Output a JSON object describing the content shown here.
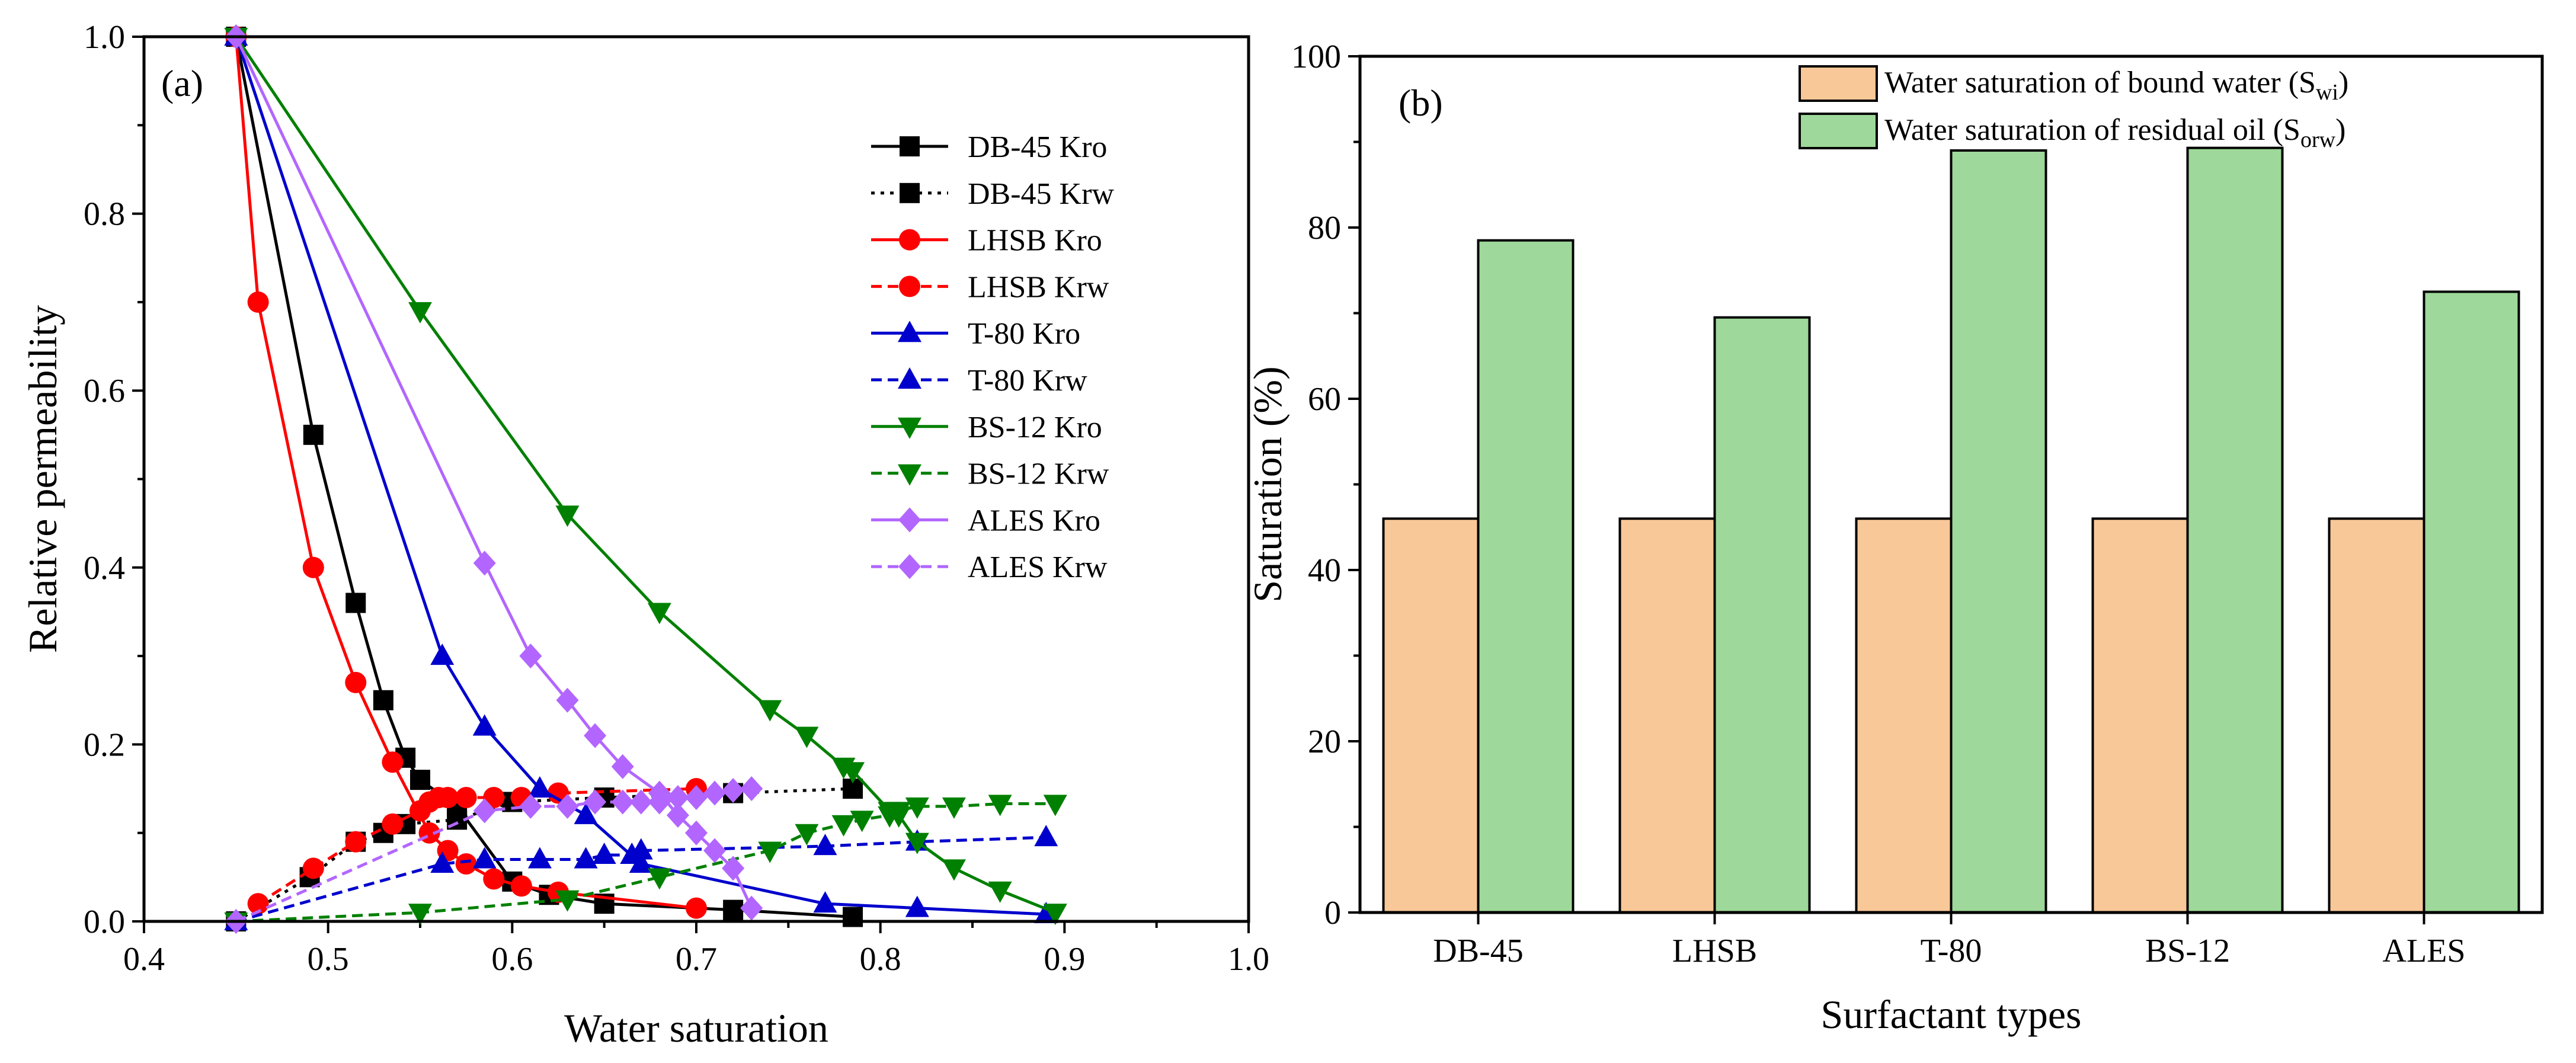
{
  "chart_data": [
    {
      "type": "line",
      "panel_label": "(a)",
      "xlabel": "Water saturation",
      "ylabel": "Relative permeability",
      "xlim": [
        0.4,
        1.0
      ],
      "ylim": [
        0.0,
        1.0
      ],
      "xticks": [
        "0.4",
        "0.5",
        "0.6",
        "0.7",
        "0.8",
        "0.9",
        "1.0"
      ],
      "yticks": [
        "0.0",
        "0.2",
        "0.4",
        "0.6",
        "0.8",
        "1.0"
      ],
      "legend_position": "top-right",
      "series": [
        {
          "name": "DB-45 Kro",
          "color": "#000000",
          "dash": "solid",
          "marker": "square",
          "x": [
            0.45,
            0.492,
            0.515,
            0.53,
            0.542,
            0.55,
            0.57,
            0.6,
            0.62,
            0.65,
            0.72,
            0.785
          ],
          "y": [
            1.0,
            0.55,
            0.36,
            0.25,
            0.185,
            0.16,
            0.13,
            0.045,
            0.03,
            0.02,
            0.013,
            0.005
          ]
        },
        {
          "name": "DB-45 Krw",
          "color": "#000000",
          "dash": "dotted",
          "marker": "square",
          "x": [
            0.45,
            0.49,
            0.515,
            0.53,
            0.542,
            0.57,
            0.6,
            0.65,
            0.72,
            0.785
          ],
          "y": [
            0.0,
            0.05,
            0.09,
            0.1,
            0.11,
            0.115,
            0.135,
            0.14,
            0.145,
            0.15
          ]
        },
        {
          "name": "LHSB Kro",
          "color": "#ff0000",
          "dash": "solid",
          "marker": "circle",
          "x": [
            0.45,
            0.462,
            0.492,
            0.515,
            0.535,
            0.555,
            0.565,
            0.575,
            0.59,
            0.605,
            0.625,
            0.7
          ],
          "y": [
            1.0,
            0.7,
            0.4,
            0.27,
            0.18,
            0.1,
            0.08,
            0.065,
            0.048,
            0.04,
            0.033,
            0.015
          ]
        },
        {
          "name": "LHSB Krw",
          "color": "#ff0000",
          "dash": "dashed",
          "marker": "circle",
          "x": [
            0.462,
            0.492,
            0.515,
            0.535,
            0.55,
            0.555,
            0.56,
            0.565,
            0.575,
            0.59,
            0.605,
            0.625,
            0.7
          ],
          "y": [
            0.02,
            0.06,
            0.09,
            0.11,
            0.125,
            0.135,
            0.14,
            0.14,
            0.14,
            0.14,
            0.14,
            0.145,
            0.15
          ]
        },
        {
          "name": "T-80 Kro",
          "color": "#0000cd",
          "dash": "solid",
          "marker": "triangle-up",
          "x": [
            0.45,
            0.562,
            0.585,
            0.615,
            0.64,
            0.67,
            0.77,
            0.82,
            0.89
          ],
          "y": [
            1.0,
            0.3,
            0.22,
            0.15,
            0.12,
            0.065,
            0.02,
            0.015,
            0.008
          ]
        },
        {
          "name": "T-80 Krw",
          "color": "#0000cd",
          "dash": "dashed",
          "marker": "triangle-up",
          "x": [
            0.45,
            0.562,
            0.585,
            0.615,
            0.64,
            0.65,
            0.665,
            0.67,
            0.77,
            0.82,
            0.89
          ],
          "y": [
            0.0,
            0.065,
            0.07,
            0.07,
            0.07,
            0.075,
            0.075,
            0.08,
            0.085,
            0.09,
            0.095
          ]
        },
        {
          "name": "BS-12 Kro",
          "color": "#008000",
          "dash": "solid",
          "marker": "triangle-down",
          "x": [
            0.45,
            0.55,
            0.63,
            0.68,
            0.74,
            0.76,
            0.78,
            0.785,
            0.805,
            0.81,
            0.82,
            0.84,
            0.865,
            0.895
          ],
          "y": [
            1.0,
            0.69,
            0.46,
            0.35,
            0.24,
            0.21,
            0.175,
            0.17,
            0.125,
            0.12,
            0.09,
            0.06,
            0.035,
            0.01
          ]
        },
        {
          "name": "BS-12 Krw",
          "color": "#008000",
          "dash": "dashed",
          "marker": "triangle-down",
          "x": [
            0.45,
            0.55,
            0.63,
            0.68,
            0.74,
            0.76,
            0.78,
            0.79,
            0.805,
            0.81,
            0.82,
            0.84,
            0.865,
            0.895
          ],
          "y": [
            0.0,
            0.01,
            0.025,
            0.05,
            0.08,
            0.1,
            0.11,
            0.115,
            0.12,
            0.125,
            0.13,
            0.13,
            0.133,
            0.133
          ]
        },
        {
          "name": "ALES Kro",
          "color": "#b266ff",
          "dash": "solid",
          "marker": "diamond",
          "x": [
            0.45,
            0.585,
            0.61,
            0.63,
            0.645,
            0.66,
            0.68,
            0.69,
            0.7,
            0.71,
            0.72,
            0.73
          ],
          "y": [
            1.0,
            0.405,
            0.3,
            0.25,
            0.21,
            0.175,
            0.145,
            0.12,
            0.1,
            0.08,
            0.06,
            0.015
          ]
        },
        {
          "name": "ALES Krw",
          "color": "#b266ff",
          "dash": "dashed",
          "marker": "diamond",
          "x": [
            0.45,
            0.585,
            0.61,
            0.63,
            0.645,
            0.66,
            0.67,
            0.68,
            0.69,
            0.7,
            0.71,
            0.72,
            0.73
          ],
          "y": [
            0.0,
            0.125,
            0.13,
            0.13,
            0.135,
            0.135,
            0.135,
            0.135,
            0.14,
            0.14,
            0.145,
            0.148,
            0.15
          ]
        }
      ]
    },
    {
      "type": "bar",
      "panel_label": "(b)",
      "xlabel": "Surfactant types",
      "ylabel": "Saturation (%)",
      "ylim": [
        0,
        100
      ],
      "yticks": [
        "0",
        "20",
        "40",
        "60",
        "80",
        "100"
      ],
      "categories": [
        "DB-45",
        "LHSB",
        "T-80",
        "BS-12",
        "ALES"
      ],
      "legend_position": "top-center",
      "series": [
        {
          "name": "Water saturation of bound water (S",
          "subscript": "wi",
          "suffix": ")",
          "color": "#f9c898",
          "values": [
            46,
            46,
            46,
            46,
            46
          ]
        },
        {
          "name": "Water saturation of residual oil (S",
          "subscript": "orw",
          "suffix": ")",
          "color": "#9ed89a",
          "values": [
            78.5,
            69.5,
            89,
            89.3,
            72.5
          ]
        }
      ]
    }
  ]
}
